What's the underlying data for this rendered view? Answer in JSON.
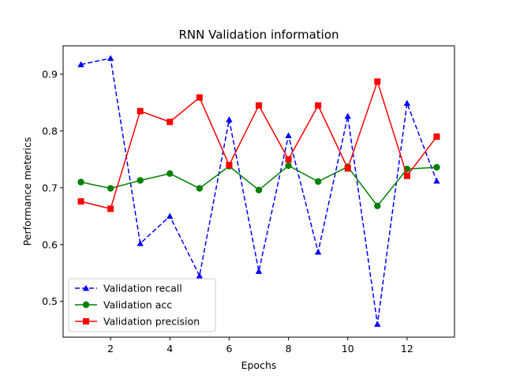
{
  "chart_data": {
    "type": "line",
    "title": "RNN Validation information",
    "xlabel": "Epochs",
    "ylabel": "Performance meterics",
    "x": [
      1,
      2,
      3,
      4,
      5,
      6,
      7,
      8,
      9,
      10,
      11,
      12,
      13
    ],
    "xlim": [
      0.4,
      13.6
    ],
    "ylim": [
      0.437,
      0.95
    ],
    "xticks": [
      2,
      4,
      6,
      8,
      10,
      12
    ],
    "yticks": [
      0.5,
      0.6,
      0.7,
      0.8,
      0.9
    ],
    "grid": false,
    "legend_position": "lower-left",
    "series": [
      {
        "name": "Validation recall",
        "color": "#0000ff",
        "linestyle": "dashed",
        "marker": "triangle",
        "values": [
          0.917,
          0.928,
          0.602,
          0.65,
          0.545,
          0.82,
          0.553,
          0.792,
          0.587,
          0.826,
          0.46,
          0.849,
          0.712
        ]
      },
      {
        "name": "Validation acc",
        "color": "#008000",
        "linestyle": "solid",
        "marker": "circle",
        "values": [
          0.71,
          0.699,
          0.713,
          0.725,
          0.699,
          0.738,
          0.696,
          0.739,
          0.711,
          0.737,
          0.668,
          0.733,
          0.736
        ]
      },
      {
        "name": "Validation precision",
        "color": "#ff0000",
        "linestyle": "solid",
        "marker": "square",
        "values": [
          0.676,
          0.663,
          0.835,
          0.816,
          0.859,
          0.74,
          0.845,
          0.75,
          0.845,
          0.734,
          0.887,
          0.721,
          0.79
        ]
      }
    ]
  }
}
